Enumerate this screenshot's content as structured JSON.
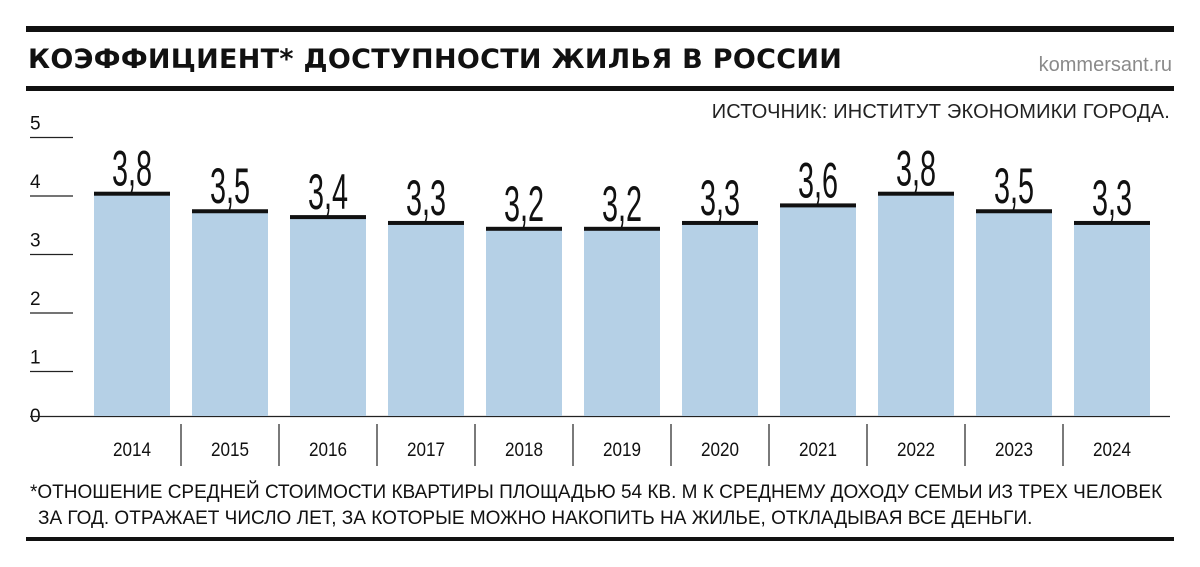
{
  "header": {
    "title": "КОЭФФИЦИЕНТ* ДОСТУПНОСТИ ЖИЛЬЯ В РОССИИ",
    "site": "kommersant.ru",
    "source": "ИСТОЧНИК: ИНСТИТУТ ЭКОНОМИКИ ГОРОДА."
  },
  "footnote": {
    "line1": "*ОТНОШЕНИЕ СРЕДНЕЙ СТОИМОСТИ КВАРТИРЫ ПЛОЩАДЬЮ 54 КВ. М К СРЕДНЕМУ ДОХОДУ СЕМЬИ ИЗ ТРЕХ ЧЕЛОВЕК",
    "line2": "ЗА ГОД. ОТРАЖАЕТ ЧИСЛО ЛЕТ, ЗА КОТОРЫЕ МОЖНО НАКОПИТЬ НА ЖИЛЬЕ, ОТКЛАДЫВАЯ ВСЕ ДЕНЬГИ."
  },
  "chart_data": {
    "type": "bar",
    "categories": [
      "2014",
      "2015",
      "2016",
      "2017",
      "2018",
      "2019",
      "2020",
      "2021",
      "2022",
      "2023",
      "2024"
    ],
    "values": [
      3.8,
      3.5,
      3.4,
      3.3,
      3.2,
      3.2,
      3.3,
      3.6,
      3.8,
      3.5,
      3.3
    ],
    "value_labels": [
      "3,8",
      "3,5",
      "3,4",
      "3,3",
      "3,2",
      "3,2",
      "3,3",
      "3,6",
      "3,8",
      "3,5",
      "3,3"
    ],
    "yticks": [
      0,
      1,
      2,
      3,
      4,
      5
    ],
    "ylim": [
      0,
      5
    ],
    "title": "КОЭФФИЦИЕНТ* ДОСТУПНОСТИ ЖИЛЬЯ В РОССИИ",
    "xlabel": "",
    "ylabel": "",
    "grid": false,
    "colors": {
      "bar": "#b5d0e6",
      "bar_top": "#111111",
      "axis": "#222222",
      "text": "#111111"
    }
  }
}
